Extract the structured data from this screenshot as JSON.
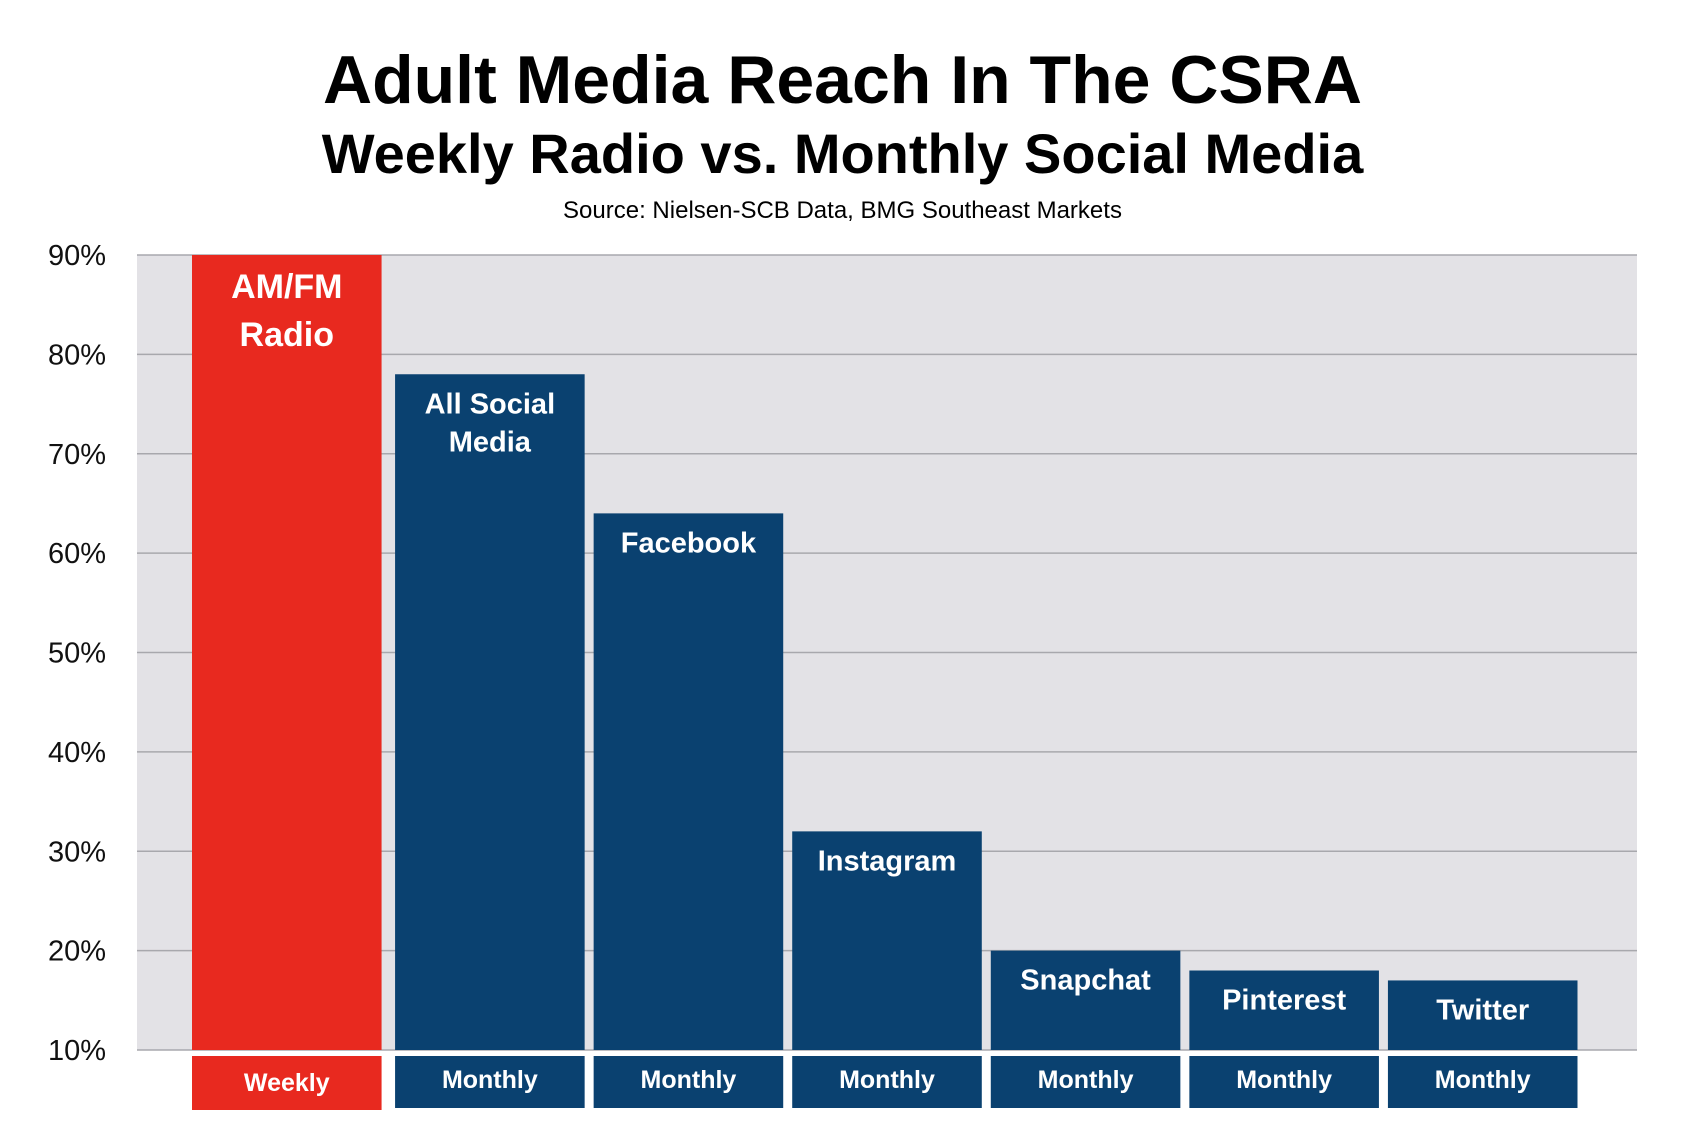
{
  "chart_data": {
    "type": "bar",
    "title": "Adult Media Reach In The CSRA",
    "subtitle": "Weekly Radio vs. Monthly Social Media",
    "source": "Source: Nielsen-SCB Data, BMG Southeast Markets",
    "xlabel": "",
    "ylabel": "",
    "ylim": [
      10,
      90
    ],
    "yticks": [
      "10%",
      "20%",
      "30%",
      "40%",
      "50%",
      "60%",
      "70%",
      "80%",
      "90%"
    ],
    "grid": true,
    "categories": [
      [
        "AM/FM",
        "Radio"
      ],
      [
        "All Social",
        "Media"
      ],
      [
        "Facebook"
      ],
      [
        "Instagram"
      ],
      [
        "Snapchat"
      ],
      [
        "Pinterest"
      ],
      [
        "Twitter"
      ]
    ],
    "values": [
      90,
      78,
      64,
      32,
      20,
      18,
      17
    ],
    "periods": [
      "Weekly",
      "Monthly",
      "Monthly",
      "Monthly",
      "Monthly",
      "Monthly",
      "Monthly"
    ],
    "colors": {
      "radio": "#e8291f",
      "social": "#0a4170",
      "plot_background": "#e3e2e6",
      "gridline": "#a8a8ad"
    }
  }
}
